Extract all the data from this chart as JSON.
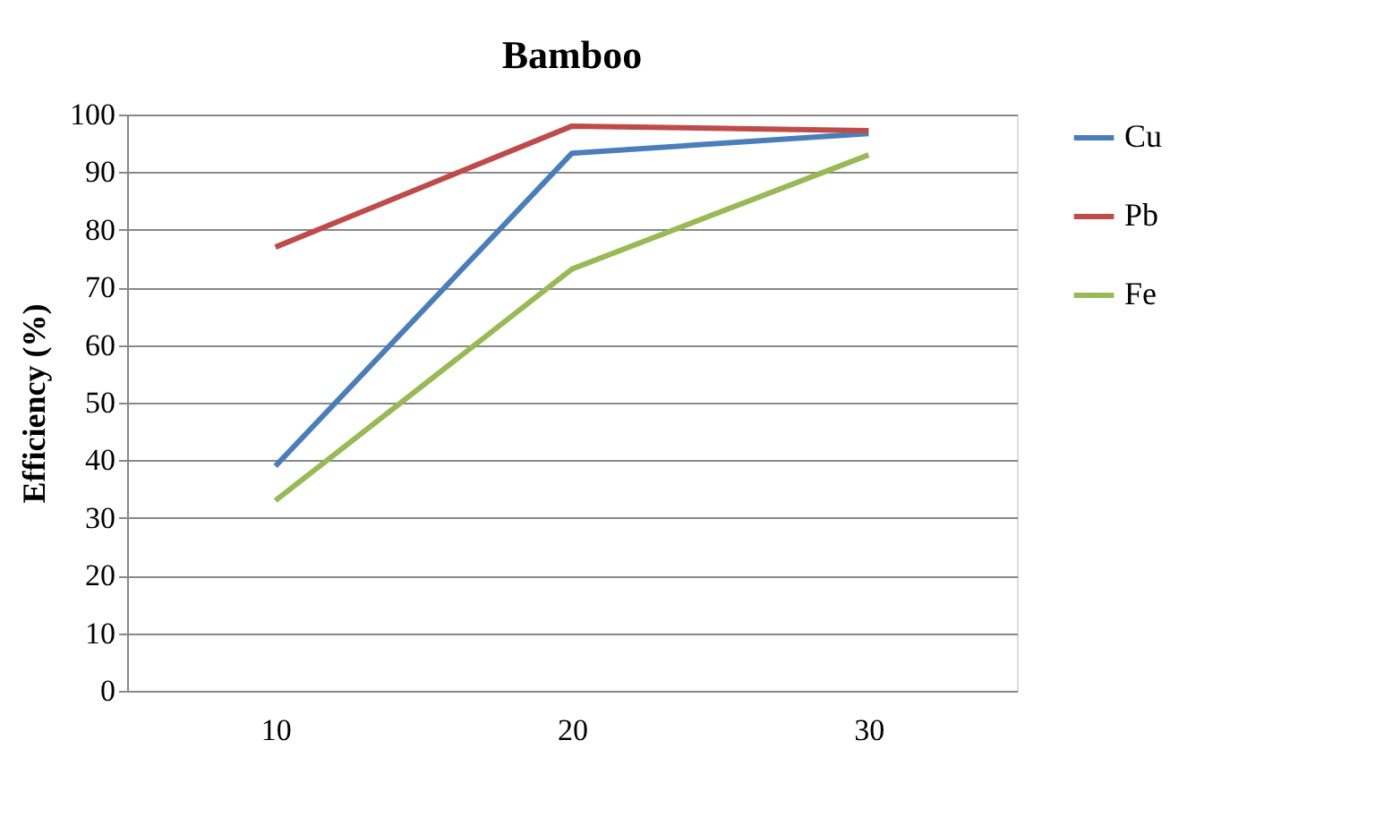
{
  "chart_data": {
    "type": "line",
    "title": "Bamboo",
    "ylabel": "Efficiency (%)",
    "categories": [
      "10",
      "20",
      "30"
    ],
    "series": [
      {
        "name": "Cu",
        "color": "#4a7ebb",
        "values": [
          39,
          93.3,
          96.7
        ]
      },
      {
        "name": "Pb",
        "color": "#be4b48",
        "values": [
          77,
          98,
          97.2
        ]
      },
      {
        "name": "Fe",
        "color": "#98b954",
        "values": [
          33,
          73.2,
          93
        ]
      }
    ],
    "ylim": [
      0,
      100
    ],
    "yticks": [
      0,
      10,
      20,
      30,
      40,
      50,
      60,
      70,
      80,
      90,
      100
    ],
    "grid": "y",
    "legend": "right",
    "marker": "none",
    "line_style": "solid"
  }
}
